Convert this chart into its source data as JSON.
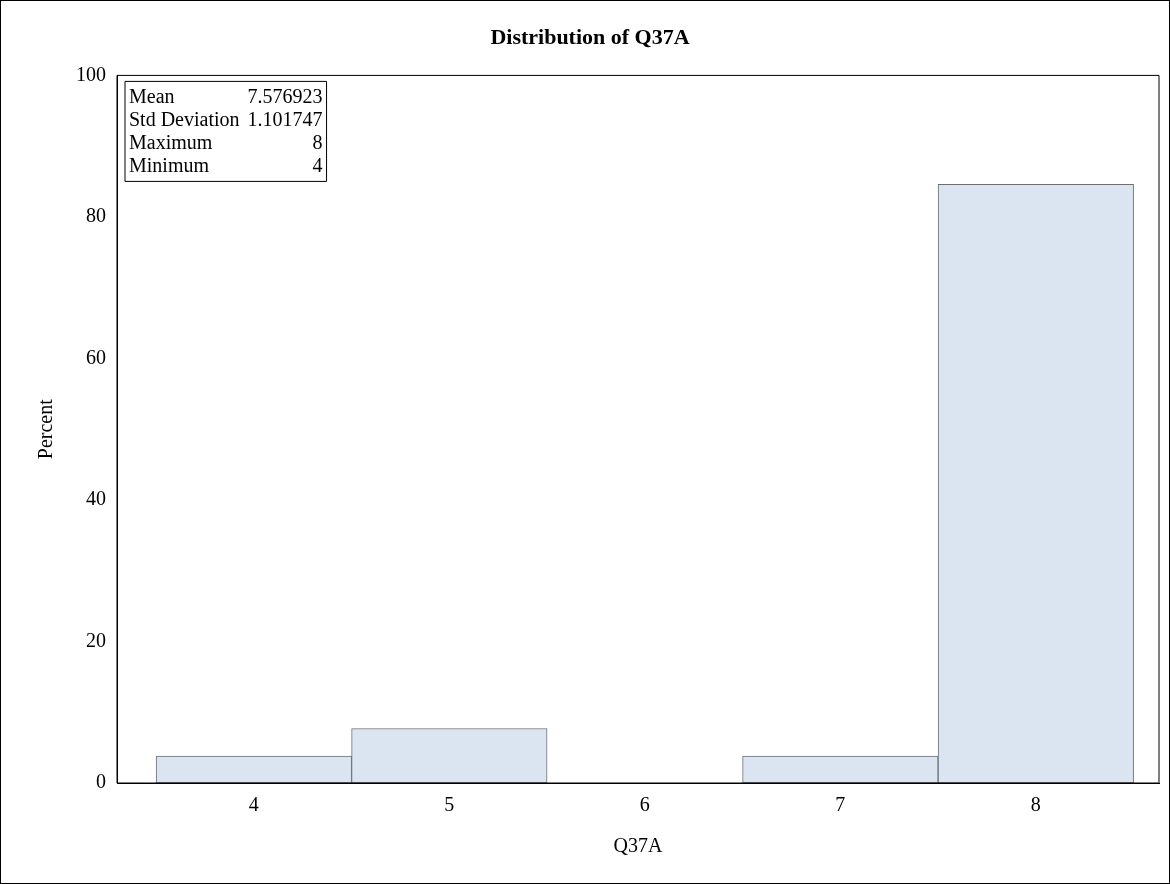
{
  "chart_data": {
    "type": "histogram",
    "title": "Distribution of Q37A",
    "xlabel": "Q37A",
    "ylabel": "Percent",
    "bins": [
      3.5,
      4.5,
      5.5,
      6.5,
      7.5,
      8.5
    ],
    "values": [
      3.8,
      7.7,
      0,
      3.8,
      84.6
    ],
    "color": "#dbe5f2",
    "xlim": [
      3.3,
      8.63
    ],
    "xticks": [
      4,
      5,
      6,
      7,
      8
    ],
    "ylim": [
      0,
      100
    ],
    "yticks": [
      0,
      20,
      40,
      60,
      80,
      100
    ],
    "grid": false,
    "legend": false,
    "annotations": [
      "Mean 7.576923",
      "Std Deviation 1.101747",
      "Maximum 8",
      "Minimum 4"
    ]
  }
}
